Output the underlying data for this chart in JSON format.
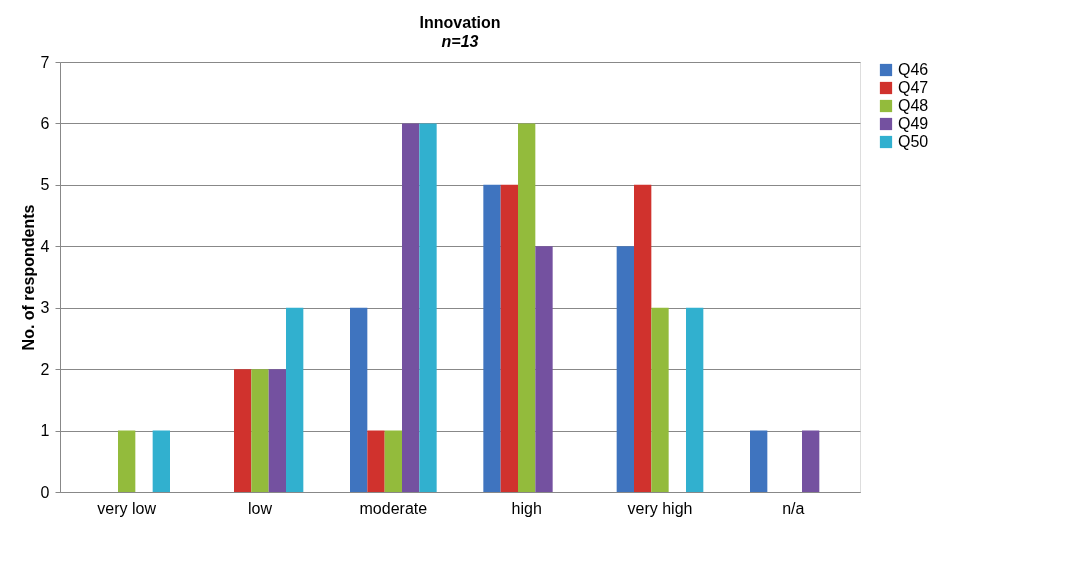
{
  "chart_data": {
    "type": "bar",
    "title": "Innovation",
    "subtitle": "n=13",
    "ylabel": "No. of respondents",
    "categories": [
      "very low",
      "low",
      "moderate",
      "high",
      "very high",
      "n/a"
    ],
    "series": [
      {
        "name": "Q46",
        "color": "#3f74bf",
        "values": [
          0,
          0,
          3,
          5,
          4,
          1
        ]
      },
      {
        "name": "Q47",
        "color": "#d0322d",
        "values": [
          0,
          2,
          1,
          5,
          5,
          0
        ]
      },
      {
        "name": "Q48",
        "color": "#93bb3c",
        "values": [
          1,
          2,
          1,
          6,
          3,
          0
        ]
      },
      {
        "name": "Q49",
        "color": "#7451a0",
        "values": [
          0,
          2,
          6,
          4,
          0,
          1
        ]
      },
      {
        "name": "Q50",
        "color": "#31b0cf",
        "values": [
          1,
          3,
          6,
          0,
          3,
          0
        ]
      }
    ],
    "ylim": [
      0,
      7
    ],
    "yticks": [
      0,
      1,
      2,
      3,
      4,
      5,
      6,
      7
    ],
    "grid": "y",
    "legend": "right"
  }
}
